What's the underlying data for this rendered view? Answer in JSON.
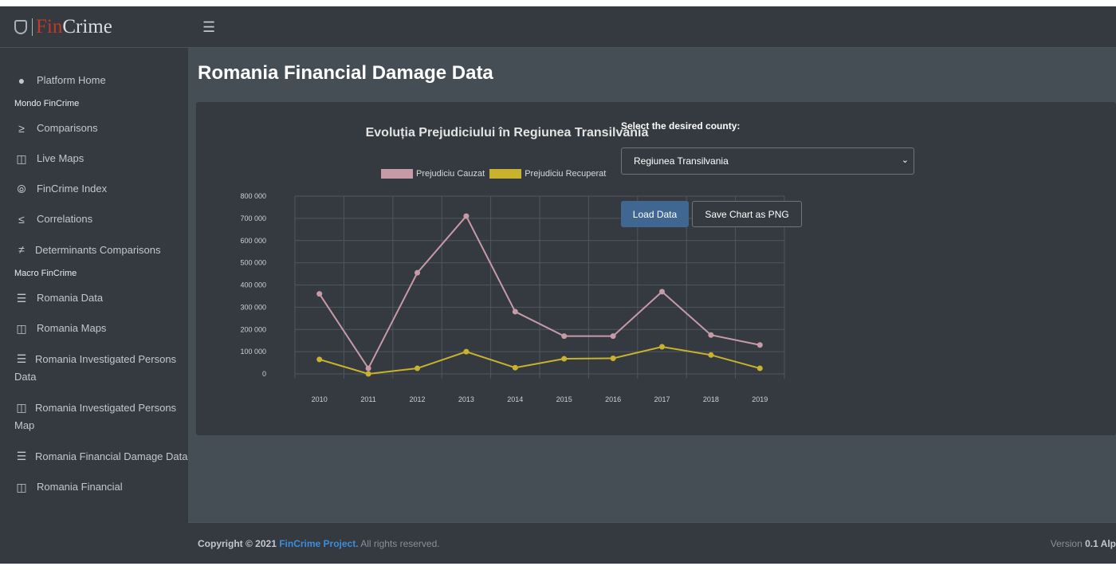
{
  "brand": {
    "fin": "Fin",
    "crime": "Crime"
  },
  "topbar": {
    "menu_icon": "hamburger-icon"
  },
  "sidebar": {
    "items": [
      {
        "type": "link",
        "icon": "tachometer-icon",
        "label": "Platform Home"
      },
      {
        "type": "header",
        "label": "Mondo FinCrime"
      },
      {
        "type": "link",
        "icon": "greater-equal-icon",
        "label": "Comparisons"
      },
      {
        "type": "link",
        "icon": "map-icon",
        "label": "Live Maps"
      },
      {
        "type": "link",
        "icon": "broadcast-icon",
        "label": "FinCrime Index"
      },
      {
        "type": "link",
        "icon": "less-equal-icon",
        "label": "Correlations"
      },
      {
        "type": "link",
        "icon": "not-equal-icon",
        "label": "Determinants Comparisons"
      },
      {
        "type": "header",
        "label": "Macro FinCrime"
      },
      {
        "type": "link",
        "icon": "database-icon",
        "label": "Romania Data"
      },
      {
        "type": "link",
        "icon": "map-icon",
        "label": "Romania Maps"
      },
      {
        "type": "link",
        "icon": "database-icon",
        "label": "Romania Investigated Persons Data"
      },
      {
        "type": "link",
        "icon": "map-icon",
        "label": "Romania Investigated Persons Map"
      },
      {
        "type": "link",
        "icon": "database-icon",
        "label": "Romania Financial Damage Data"
      },
      {
        "type": "link",
        "icon": "map-icon",
        "label": "Romania Financial"
      }
    ]
  },
  "page": {
    "title": "Romania Financial Damage Data"
  },
  "form": {
    "label": "Select the desired county:",
    "selected": "Regiunea Transilvania",
    "load_button": "Load Data",
    "save_button": "Save Chart as PNG"
  },
  "footer": {
    "copyright_prefix": "Copyright © 2021 ",
    "project": "FinCrime Project.",
    "rights": " All rights reserved.",
    "version_label": "Version ",
    "version": "0.1 Alp"
  },
  "chart_data": {
    "type": "line",
    "title": "Evoluția Prejudiciului în Regiunea Transilvania",
    "categories": [
      "2010",
      "2011",
      "2012",
      "2013",
      "2014",
      "2015",
      "2016",
      "2017",
      "2018",
      "2019"
    ],
    "ylim": [
      0,
      800000
    ],
    "yticks": [
      "800 000",
      "700 000",
      "600 000",
      "500 000",
      "400 000",
      "300 000",
      "200 000",
      "100 000",
      "0"
    ],
    "grid": true,
    "legend_position": "top",
    "series": [
      {
        "name": "Prejudiciu Cauzat",
        "color": "#c79aa8",
        "values": [
          360000,
          25000,
          455000,
          710000,
          280000,
          170000,
          170000,
          370000,
          175000,
          130000
        ]
      },
      {
        "name": "Prejudiciu Recuperat",
        "color": "#c9b22e",
        "values": [
          65000,
          0,
          25000,
          100000,
          28000,
          68000,
          70000,
          122000,
          85000,
          25000
        ]
      }
    ]
  }
}
